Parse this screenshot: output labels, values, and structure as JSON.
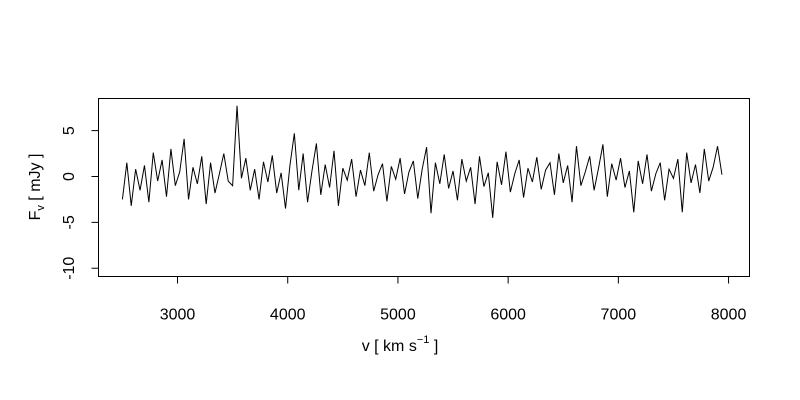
{
  "chart_data": {
    "type": "line",
    "x_label": {
      "main": "v [ km s",
      "sup": "−1",
      "end": " ]"
    },
    "y_label": {
      "main": "F",
      "sub": "v",
      "end": " [ mJy ]"
    },
    "x": [
      2500,
      2540,
      2580,
      2620,
      2660,
      2700,
      2740,
      2780,
      2820,
      2860,
      2900,
      2940,
      2980,
      3020,
      3060,
      3100,
      3140,
      3180,
      3220,
      3260,
      3300,
      3340,
      3380,
      3420,
      3460,
      3500,
      3540,
      3580,
      3620,
      3660,
      3700,
      3740,
      3780,
      3820,
      3860,
      3900,
      3940,
      3980,
      4020,
      4060,
      4100,
      4140,
      4180,
      4220,
      4260,
      4300,
      4340,
      4380,
      4420,
      4460,
      4500,
      4540,
      4580,
      4620,
      4660,
      4700,
      4740,
      4780,
      4820,
      4860,
      4900,
      4940,
      4980,
      5020,
      5060,
      5100,
      5140,
      5180,
      5220,
      5260,
      5300,
      5340,
      5380,
      5420,
      5460,
      5500,
      5540,
      5580,
      5620,
      5660,
      5700,
      5740,
      5780,
      5820,
      5860,
      5900,
      5940,
      5980,
      6020,
      6060,
      6100,
      6140,
      6180,
      6220,
      6260,
      6300,
      6340,
      6380,
      6420,
      6460,
      6500,
      6540,
      6580,
      6620,
      6660,
      6700,
      6740,
      6780,
      6820,
      6860,
      6900,
      6940,
      6980,
      7020,
      7060,
      7100,
      7140,
      7180,
      7220,
      7260,
      7300,
      7340,
      7380,
      7420,
      7460,
      7500,
      7540,
      7580,
      7620,
      7660,
      7700,
      7740,
      7780,
      7820,
      7860,
      7900,
      7940
    ],
    "series": [
      {
        "color": "#000000",
        "values": [
          -2.5,
          1.5,
          -3.2,
          0.8,
          -1.5,
          1.2,
          -2.8,
          2.6,
          -0.5,
          1.8,
          -2.2,
          3.0,
          -1.0,
          0.5,
          4.1,
          -2.5,
          1.0,
          -0.8,
          2.2,
          -3.0,
          1.5,
          -1.8,
          0.3,
          2.5,
          -0.5,
          -1.0,
          7.7,
          -0.2,
          2.0,
          -1.5,
          0.8,
          -2.5,
          1.6,
          -0.6,
          2.3,
          -1.8,
          0.4,
          -3.5,
          1.2,
          4.7,
          -1.5,
          2.5,
          -2.8,
          0.6,
          3.6,
          -2.0,
          1.3,
          -1.2,
          2.8,
          -3.2,
          0.9,
          -0.4,
          1.9,
          -2.2,
          0.7,
          -1.0,
          2.6,
          -1.6,
          0.2,
          1.4,
          -2.7,
          1.1,
          -0.3,
          2.0,
          -1.9,
          0.5,
          1.7,
          -2.4,
          0.8,
          3.2,
          -4.0,
          1.5,
          -0.8,
          2.4,
          -1.3,
          0.6,
          -2.6,
          1.9,
          -0.5,
          1.0,
          -3.0,
          2.2,
          -1.1,
          0.4,
          -4.5,
          1.6,
          -0.9,
          2.7,
          -1.7,
          0.3,
          1.8,
          -2.3,
          0.9,
          -0.6,
          2.1,
          -1.4,
          0.7,
          1.5,
          -2.0,
          2.5,
          -0.7,
          1.2,
          -2.8,
          3.3,
          -1.0,
          0.5,
          2.2,
          -1.5,
          0.9,
          3.5,
          -2.2,
          1.4,
          -0.4,
          2.0,
          -1.2,
          0.6,
          -3.9,
          1.7,
          -0.8,
          2.4,
          -1.6,
          0.3,
          1.5,
          -2.6,
          0.8,
          -0.2,
          1.9,
          -3.9,
          2.6,
          -0.7,
          1.3,
          -1.8,
          3.0,
          -0.5,
          1.0,
          3.3,
          0.2
        ]
      }
    ],
    "xlim": [
      2283,
      8190
    ],
    "xticks": [
      3000,
      4000,
      5000,
      6000,
      7000,
      8000
    ],
    "ylim": [
      -10.9,
      8.5
    ],
    "yticks": [
      -10,
      -5,
      0,
      5
    ],
    "grid": false
  }
}
